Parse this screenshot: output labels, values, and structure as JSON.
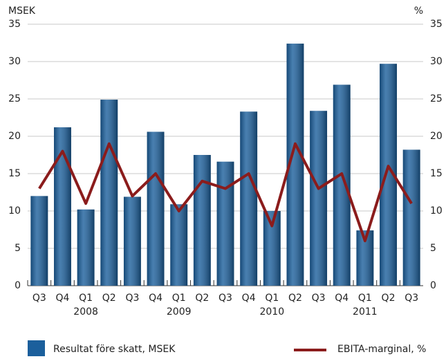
{
  "chart_data": {
    "type": "bar-line",
    "y_unit": "MSEK",
    "y2_unit": "%",
    "categories": [
      "Q3",
      "Q4",
      "Q1",
      "Q2",
      "Q3",
      "Q4",
      "Q1",
      "Q2",
      "Q3",
      "Q4",
      "Q1",
      "Q2",
      "Q3",
      "Q4",
      "Q1",
      "Q2",
      "Q3"
    ],
    "year_labels": [
      null,
      null,
      "2008",
      null,
      null,
      null,
      "2009",
      null,
      null,
      null,
      "2010",
      null,
      null,
      null,
      "2011",
      null,
      null
    ],
    "series": [
      {
        "name": "Resultat före skatt, MSEK",
        "type": "bar",
        "color": "#1b5f9c",
        "values": [
          12,
          21.2,
          10.2,
          24.9,
          11.9,
          20.6,
          10.9,
          17.5,
          16.6,
          23.3,
          10,
          32.4,
          23.4,
          26.9,
          7.4,
          29.7,
          18.2
        ]
      },
      {
        "name": "EBITA-marginal, %",
        "type": "line",
        "axis": "y2",
        "color": "#8b1c1c",
        "values": [
          13,
          18,
          11,
          19,
          12,
          15,
          10,
          14,
          13,
          15,
          8,
          19,
          13,
          15,
          6,
          16,
          11
        ]
      }
    ],
    "ylim": [
      0,
      35
    ],
    "yticks": [
      0,
      5,
      10,
      15,
      20,
      25,
      30,
      35
    ],
    "y2lim": [
      0,
      35
    ],
    "y2ticks": [
      0,
      5,
      10,
      15,
      20,
      25,
      30,
      35
    ],
    "grid": true
  }
}
